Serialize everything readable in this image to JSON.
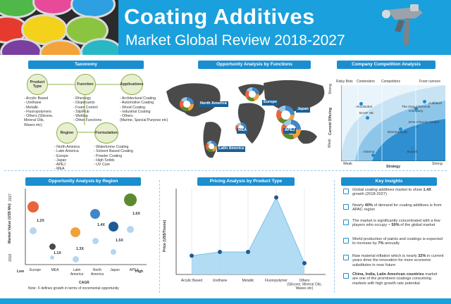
{
  "header": {
    "title": "Coating Additives",
    "subtitle": "Market Global Review 2018-2027"
  },
  "taxonomy": {
    "heading": "Taxonomy",
    "product_type": {
      "label": "Product Type",
      "items": [
        "- Acrylic Based",
        "- Urethane",
        "- Metallic",
        "- Fluoropolymers",
        "- Others (Silicone,",
        "  Mineral Oils,",
        "  Waxes etc)"
      ]
    },
    "function": {
      "label": "Function",
      "items": [
        "- Rheology",
        "- Dispersants",
        "- Foam Control",
        "- Slip/Rub",
        "- Wetting",
        "- Other Functions"
      ]
    },
    "applications": {
      "label": "Applications",
      "items": [
        "- Architectural Coating",
        "- Automotive Coating",
        "- Wood Coating",
        "- Industrial Coating",
        "- Others",
        "  (Marine, Special Purpose etc)"
      ]
    },
    "region": {
      "label": "Region",
      "items": [
        "- North America",
        "- Latin America",
        "- Europe",
        "- Japan",
        "- APEJ",
        "- MEA"
      ]
    },
    "formulation": {
      "label": "Formulation",
      "items": [
        "- Waterborne Coating",
        "- Solvent Based Coating",
        "- Powder Coating",
        "- High Solids",
        "- UV Cure"
      ]
    }
  },
  "opportunity_functions": {
    "heading": "Opportunity Analysis by Functions",
    "regions": [
      "North America",
      "Europe",
      "Japan",
      "MEA",
      "APEJ",
      "Latin America"
    ]
  },
  "competition": {
    "heading": "Company Competition Analysis",
    "columns": [
      "Risky Bets",
      "Contenders",
      "Competitors",
      "Front runners"
    ],
    "y_axis": "Current Offering",
    "y_strong": "Strong",
    "y_weak": "Weak",
    "x_axis": "Strategy",
    "x_weak": "Weak",
    "x_strong": "Strong",
    "companies": [
      "AkzoNobel",
      "Aulbland",
      "The Dow Chemical Company",
      "BASF SE",
      "BYK-Chemie GmbH",
      "Elementis plc",
      "Arkema",
      "Evonik"
    ]
  },
  "region_chart": {
    "heading": "Opportunity Analysis by Region",
    "y_axis": "Market Value (US$ Mn)",
    "y_top": "2027",
    "y_bottom": "2018",
    "x_low": "Low",
    "x_high": "High",
    "x_axis": "CAGR",
    "note": "Note: X defines growth in terms of incremental opportunity",
    "regions": [
      "Europe",
      "MEA",
      "Latin America",
      "North America",
      "Japan",
      "APEJ"
    ],
    "growth": [
      "1.2X",
      "1.1X",
      "1.3X",
      "1.4X",
      "1.5X",
      "1.6X"
    ],
    "colors": {
      "europe": "#e8643c",
      "mea": "#4a4a4a",
      "latam": "#f0a23a",
      "na": "#3f87c8",
      "japan": "#1e5a96",
      "apej": "#5c8a2e"
    }
  },
  "pricing": {
    "heading": "Pricing Analysis by Product Type",
    "y_axis": "Price (US$/Tonne)",
    "categories": [
      "Acrylic Based",
      "Urethane",
      "Metallic",
      "Fluoropolymer",
      "Others (Silicone, Mineral Oils, Waxes etc)"
    ]
  },
  "insights": {
    "heading": "Key Insights",
    "items": [
      {
        "pre": "Global coating additives market to show ",
        "bold": "1.4X",
        "post": " growth (2018-2027)"
      },
      {
        "pre": "Nearly ",
        "bold": "40%",
        "post": " of demand for coating additives is from APAC region"
      },
      {
        "pre": "The market is significantly concentrated with a few players who occupy ",
        "bold": "~ 50%",
        "post": " of the global market"
      },
      {
        "pre": "World production of paints and coatings is expected to increase by ",
        "bold": "7%",
        "post": " annually"
      },
      {
        "pre": "Raw material inflation which is nearly ",
        "bold": "32%",
        "post": " in current years drive the innovation for more economic substitutes in near future"
      },
      {
        "pre": "",
        "bold": "China, India, Latin American countries",
        "post": " market are one of the prominent coatings consuming markets with high growth rate potential"
      }
    ]
  },
  "chart_data": {
    "type": "line",
    "categories": [
      "Acrylic Based",
      "Urethane",
      "Metallic",
      "Fluoropolymer",
      "Others (Silicone, Mineral Oils, Waxes etc)"
    ],
    "values": [
      1,
      1.2,
      1.2,
      4.1,
      0.6
    ],
    "title": "Pricing Analysis by Product Type",
    "ylabel": "Price (US$/Tonne)",
    "ylim": [
      0,
      4.5
    ]
  }
}
